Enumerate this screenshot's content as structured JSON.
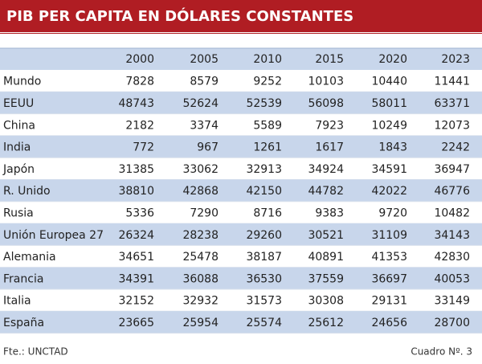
{
  "header": {
    "title": "PIB PER CAPITA EN DÓLARES CONSTANTES"
  },
  "table": {
    "columns": [
      "2000",
      "2005",
      "2010",
      "2015",
      "2020",
      "2023"
    ],
    "rows": [
      [
        "Mundo",
        7828,
        8579,
        9252,
        10103,
        10440,
        11441
      ],
      [
        "EEUU",
        48743,
        52624,
        52539,
        56098,
        58011,
        63371
      ],
      [
        "China",
        2182,
        3374,
        5589,
        7923,
        10249,
        12073
      ],
      [
        "India",
        772,
        967,
        1261,
        1617,
        1843,
        2242
      ],
      [
        "Japón",
        31385,
        33062,
        32913,
        34924,
        34591,
        36947
      ],
      [
        "R. Unido",
        38810,
        42868,
        42150,
        44782,
        42022,
        46776
      ],
      [
        "Rusia",
        5336,
        7290,
        8716,
        9383,
        9720,
        10482
      ],
      [
        "Unión Europea 27",
        26324,
        28238,
        29260,
        30521,
        31109,
        34143
      ],
      [
        "Alemania",
        34651,
        25478,
        38187,
        40891,
        41353,
        42830
      ],
      [
        "Francia",
        34391,
        36088,
        36530,
        37559,
        36697,
        40053
      ],
      [
        "Italia",
        32152,
        32932,
        31573,
        30308,
        29131,
        33149
      ],
      [
        "España",
        23665,
        25954,
        25574,
        25612,
        24656,
        28700
      ]
    ]
  },
  "footer": {
    "source": "Fte.: UNCTAD",
    "label": "Cuadro Nº. 3"
  }
}
